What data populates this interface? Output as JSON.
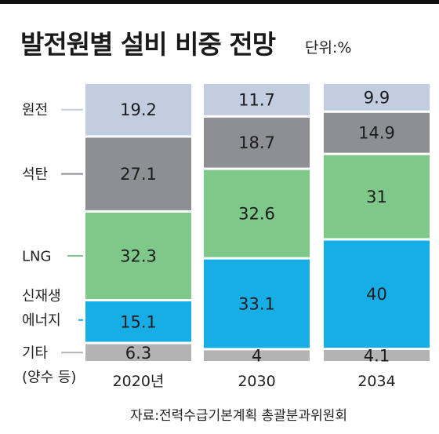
{
  "chart_data": {
    "type": "bar",
    "stacked": true,
    "title": "발전원별 설비 비중 전망",
    "unit": "단위:%",
    "categories": [
      "2020년",
      "2030",
      "2034"
    ],
    "series": [
      {
        "name": "원전",
        "color": "#c2cde0",
        "values": [
          19.2,
          11.7,
          9.9
        ]
      },
      {
        "name": "석탄",
        "color": "#8e8f95",
        "values": [
          27.1,
          18.7,
          14.9
        ]
      },
      {
        "name": "LNG",
        "color": "#7ec98a",
        "values": [
          32.3,
          32.6,
          31
        ]
      },
      {
        "name": "신재생 에너지",
        "label_lines": [
          "신재생",
          "에너지"
        ],
        "color": "#17aee6",
        "values": [
          15.1,
          33.1,
          40
        ]
      },
      {
        "name": "기타 (양수 등)",
        "label_lines": [
          "기타",
          "(양수 등)"
        ],
        "color": "#b3b3b3",
        "values": [
          6.3,
          4,
          4.1
        ]
      }
    ],
    "source": "자료:전력수급기본계획 총괄분과위원회"
  }
}
